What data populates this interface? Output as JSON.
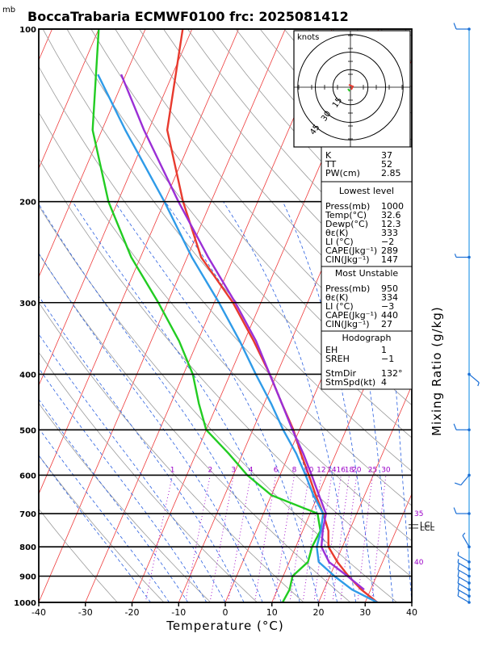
{
  "header": {
    "unit_mb": "mb",
    "title": "BoccaTrabaria ECMWF0100 frc: 2025081412"
  },
  "axes": {
    "xlabel": "Temperature (°C)",
    "right_label": "Mixing Ratio (g/kg)",
    "x_ticks": [
      "-40",
      "-30",
      "-20",
      "-10",
      "0",
      "10",
      "20",
      "30",
      "40"
    ],
    "p_ticks": [
      "100",
      "200",
      "300",
      "400",
      "500",
      "600",
      "700",
      "800",
      "900",
      "1000"
    ]
  },
  "chart_data": {
    "type": "line",
    "title": "BoccaTrabaria ECMWF0100 frc: 2025081412",
    "xlabel": "Temperature (°C)",
    "ylabel": "mb",
    "xlim": [
      -40,
      40
    ],
    "ylim": [
      1000,
      100
    ],
    "y_scale": "log-pressure (skew-T)",
    "series": [
      {
        "color": "#e83a2e",
        "points": [
          [
            1000,
            32.6
          ],
          [
            950,
            28
          ],
          [
            900,
            24
          ],
          [
            850,
            20.3
          ],
          [
            800,
            17
          ],
          [
            750,
            15.5
          ],
          [
            700,
            12.8
          ],
          [
            650,
            9.5
          ],
          [
            600,
            6.2
          ],
          [
            550,
            2.5
          ],
          [
            500,
            -1.3
          ],
          [
            450,
            -6.2
          ],
          [
            400,
            -11.5
          ],
          [
            350,
            -18
          ],
          [
            300,
            -26
          ],
          [
            250,
            -37
          ],
          [
            200,
            -46
          ],
          [
            150,
            -56
          ],
          [
            100,
            -62
          ]
        ]
      },
      {
        "color": "#22cc22",
        "points": [
          [
            1000,
            12.3
          ],
          [
            950,
            12.6
          ],
          [
            900,
            12
          ],
          [
            850,
            14
          ],
          [
            800,
            13.5
          ],
          [
            750,
            13.8
          ],
          [
            700,
            11.6
          ],
          [
            650,
            0
          ],
          [
            600,
            -7
          ],
          [
            550,
            -13
          ],
          [
            500,
            -20
          ],
          [
            450,
            -24
          ],
          [
            400,
            -28
          ],
          [
            350,
            -34
          ],
          [
            300,
            -42
          ],
          [
            250,
            -52
          ],
          [
            200,
            -62
          ],
          [
            150,
            -72
          ],
          [
            100,
            -80
          ]
        ]
      },
      {
        "color": "#2f9be8",
        "points": [
          [
            1000,
            32.6
          ],
          [
            950,
            26
          ],
          [
            900,
            21
          ],
          [
            850,
            16.3
          ],
          [
            800,
            14.5
          ],
          [
            750,
            13.9
          ],
          [
            700,
            12.8
          ],
          [
            650,
            9
          ],
          [
            600,
            5.5
          ],
          [
            550,
            1.5
          ],
          [
            500,
            -3.5
          ],
          [
            450,
            -8.5
          ],
          [
            400,
            -14.5
          ],
          [
            350,
            -21
          ],
          [
            300,
            -29
          ],
          [
            250,
            -39
          ],
          [
            200,
            -50
          ],
          [
            150,
            -65
          ],
          [
            120,
            -76
          ]
        ]
      },
      {
        "color": "#9b2fd6",
        "points": [
          [
            950,
            28.6
          ],
          [
            900,
            23.8
          ],
          [
            850,
            18.5
          ],
          [
            800,
            15.5
          ],
          [
            750,
            14.3
          ],
          [
            700,
            13.4
          ],
          [
            650,
            10.2
          ],
          [
            600,
            6.8
          ],
          [
            550,
            3
          ],
          [
            500,
            -1.5
          ],
          [
            450,
            -6.2
          ],
          [
            400,
            -11.5
          ],
          [
            350,
            -17.5
          ],
          [
            300,
            -25.5
          ],
          [
            250,
            -35.5
          ],
          [
            200,
            -47
          ],
          [
            150,
            -61
          ],
          [
            120,
            -71
          ]
        ]
      }
    ],
    "mixing_ratio_labels": [
      "1",
      "2",
      "3",
      "4",
      "6",
      "8",
      "10",
      "12",
      "14",
      "16",
      "18",
      "20",
      "25",
      "30"
    ],
    "annotations": [
      "35",
      "40",
      "LCL",
      "LCL"
    ],
    "wind_barbs": [
      {
        "p": 1000,
        "dir": 300,
        "kt": 10
      },
      {
        "p": 975,
        "dir": 300,
        "kt": 10
      },
      {
        "p": 950,
        "dir": 300,
        "kt": 10
      },
      {
        "p": 925,
        "dir": 300,
        "kt": 10
      },
      {
        "p": 900,
        "dir": 300,
        "kt": 10
      },
      {
        "p": 875,
        "dir": 300,
        "kt": 5
      },
      {
        "p": 850,
        "dir": 300,
        "kt": 5
      },
      {
        "p": 800,
        "dir": 330,
        "kt": 5
      },
      {
        "p": 700,
        "dir": 270,
        "kt": 10
      },
      {
        "p": 600,
        "dir": 220,
        "kt": 10
      },
      {
        "p": 500,
        "dir": 270,
        "kt": 10
      },
      {
        "p": 400,
        "dir": 130,
        "kt": 5
      },
      {
        "p": 250,
        "dir": 270,
        "kt": 5
      },
      {
        "p": 100,
        "dir": 270,
        "kt": 10
      }
    ]
  },
  "hodograph": {
    "label": "knots",
    "ring_labels": [
      "15",
      "30",
      "45"
    ]
  },
  "indices": {
    "top": [
      {
        "k": "K",
        "v": "37"
      },
      {
        "k": "TT",
        "v": "52"
      },
      {
        "k": "PW(cm)",
        "v": "2.85"
      }
    ],
    "lowest": {
      "header": "Lowest level",
      "rows": [
        {
          "k": "Press(mb)",
          "v": "1000"
        },
        {
          "k": "Temp(°C)",
          "v": "32.6"
        },
        {
          "k": "Dewp(°C)",
          "v": "12.3"
        },
        {
          "k": "θε(K)",
          "v": "333"
        },
        {
          "k": "LI (°C)",
          "v": "−2"
        },
        {
          "k": "CAPE(Jkg⁻¹)",
          "v": "289"
        },
        {
          "k": "CIN(Jkg⁻¹)",
          "v": "147"
        }
      ]
    },
    "most_unstable": {
      "header": "Most Unstable",
      "rows": [
        {
          "k": "Press(mb)",
          "v": "950"
        },
        {
          "k": "θε(K)",
          "v": "334"
        },
        {
          "k": "LI (°C)",
          "v": "−3"
        },
        {
          "k": "CAPE(Jkg⁻¹)",
          "v": "440"
        },
        {
          "k": "CIN(Jkg⁻¹)",
          "v": "27"
        }
      ]
    },
    "hodo": {
      "header": "Hodograph",
      "rows": [
        {
          "k": "EH",
          "v": "1"
        },
        {
          "k": "SREH",
          "v": "−1"
        },
        {
          "k": "StmDir",
          "v": "132°"
        },
        {
          "k": "StmSpd(kt)",
          "v": "4"
        }
      ]
    }
  }
}
